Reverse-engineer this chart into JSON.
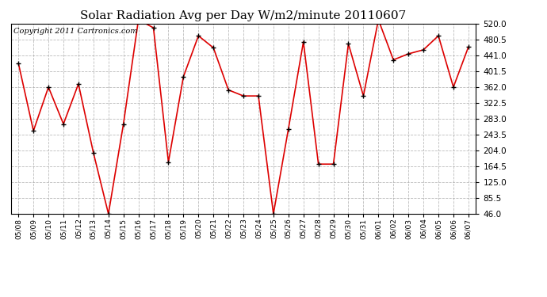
{
  "title": "Solar Radiation Avg per Day W/m2/minute 20110607",
  "copyright_text": "Copyright 2011 Cartronics.com",
  "dates": [
    "05/08",
    "05/09",
    "05/10",
    "05/11",
    "05/12",
    "05/13",
    "05/14",
    "05/15",
    "05/16",
    "05/17",
    "05/18",
    "05/19",
    "05/20",
    "05/21",
    "05/22",
    "05/23",
    "05/24",
    "05/25",
    "05/26",
    "05/27",
    "05/28",
    "05/29",
    "05/30",
    "05/31",
    "06/01",
    "06/02",
    "06/03",
    "06/04",
    "06/05",
    "06/06",
    "06/07"
  ],
  "values": [
    421,
    253,
    362,
    270,
    370,
    198,
    46,
    270,
    530,
    510,
    175,
    388,
    490,
    460,
    355,
    340,
    340,
    46,
    258,
    475,
    170,
    170,
    470,
    340,
    530,
    430,
    445,
    455,
    490,
    362,
    462
  ],
  "line_color": "#dd0000",
  "marker_color": "#000000",
  "bg_color": "#ffffff",
  "grid_color": "#aaaaaa",
  "yticks": [
    46.0,
    85.5,
    125.0,
    164.5,
    204.0,
    243.5,
    283.0,
    322.5,
    362.0,
    401.5,
    441.0,
    480.5,
    520.0
  ],
  "ylim": [
    46.0,
    520.0
  ],
  "title_fontsize": 11,
  "copyright_fontsize": 7,
  "tick_fontsize": 7.5,
  "xtick_fontsize": 6.5
}
